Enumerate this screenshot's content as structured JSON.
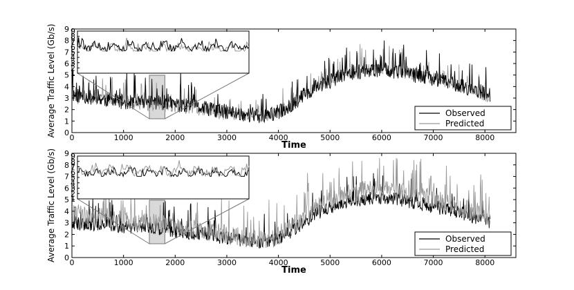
{
  "chart_data": [
    {
      "type": "line",
      "title": "",
      "xlabel": "Time",
      "ylabel": "Average Traffic Level (Gb/s)",
      "xlim": [
        0,
        8600
      ],
      "ylim": [
        0,
        9
      ],
      "x_ticks": [
        "0",
        "1000",
        "2000",
        "3000",
        "4000",
        "5000",
        "6000",
        "7000",
        "8000"
      ],
      "y_ticks": [
        "0",
        "1",
        "2",
        "3",
        "4",
        "5",
        "6",
        "7",
        "8",
        "9"
      ],
      "grid": false,
      "legend_position": "lower-right",
      "series": [
        {
          "name": "Observed",
          "color": "#000000",
          "x": [
            0,
            300,
            600,
            900,
            1200,
            1500,
            1800,
            2100,
            2400,
            2700,
            3000,
            3300,
            3600,
            3900,
            4200,
            4500,
            4800,
            5100,
            5400,
            5700,
            6000,
            6300,
            6600,
            6900,
            7200,
            7500,
            7800,
            8100
          ],
          "values": [
            3.3,
            3.1,
            2.9,
            2.7,
            2.6,
            2.7,
            2.6,
            2.4,
            2.2,
            2.0,
            1.8,
            1.6,
            1.4,
            1.6,
            2.2,
            3.3,
            4.1,
            4.7,
            5.2,
            5.4,
            5.5,
            5.3,
            5.0,
            4.8,
            4.5,
            4.1,
            3.7,
            3.3
          ]
        },
        {
          "name": "Predicted",
          "color": "#999999",
          "x": [
            0,
            300,
            600,
            900,
            1200,
            1500,
            1800,
            2100,
            2400,
            2700,
            3000,
            3300,
            3600,
            3900,
            4200,
            4500,
            4800,
            5100,
            5400,
            5700,
            6000,
            6300,
            6600,
            6900,
            7200,
            7500,
            7800,
            8100
          ],
          "values": [
            3.0,
            2.9,
            2.9,
            2.8,
            2.6,
            2.4,
            2.3,
            2.2,
            2.0,
            1.8,
            1.6,
            1.5,
            1.4,
            1.6,
            2.2,
            3.3,
            4.1,
            4.8,
            5.3,
            5.5,
            5.6,
            5.4,
            5.1,
            4.8,
            4.5,
            4.1,
            3.6,
            3.0
          ]
        }
      ],
      "inset": {
        "x_range": [
          1500,
          1800
        ],
        "ylim": [
          1,
          9
        ],
        "y_ticks": [
          "1",
          "2",
          "3",
          "4",
          "5",
          "6",
          "7",
          "8",
          "9"
        ]
      }
    },
    {
      "type": "line",
      "title": "",
      "xlabel": "Time",
      "ylabel": "Average Traffic Level (Gb/s)",
      "xlim": [
        0,
        8600
      ],
      "ylim": [
        0,
        9
      ],
      "x_ticks": [
        "0",
        "1000",
        "2000",
        "3000",
        "4000",
        "5000",
        "6000",
        "7000",
        "8000"
      ],
      "y_ticks": [
        "0",
        "1",
        "2",
        "3",
        "4",
        "5",
        "6",
        "7",
        "8",
        "9"
      ],
      "grid": false,
      "legend_position": "lower-right",
      "series": [
        {
          "name": "Observed",
          "color": "#000000",
          "x": [
            0,
            300,
            600,
            900,
            1200,
            1500,
            1800,
            2100,
            2400,
            2700,
            3000,
            3300,
            3600,
            3900,
            4200,
            4500,
            4800,
            5100,
            5400,
            5700,
            6000,
            6300,
            6600,
            6900,
            7200,
            7500,
            7800,
            8100
          ],
          "values": [
            3.0,
            2.9,
            2.8,
            2.7,
            2.6,
            2.6,
            2.4,
            2.2,
            2.1,
            1.9,
            1.7,
            1.5,
            1.3,
            1.5,
            2.1,
            3.1,
            3.9,
            4.5,
            4.9,
            5.1,
            5.2,
            5.0,
            4.8,
            4.5,
            4.2,
            3.9,
            3.5,
            3.1
          ]
        },
        {
          "name": "Predicted",
          "color": "#999999",
          "x": [
            0,
            300,
            600,
            900,
            1200,
            1500,
            1800,
            2100,
            2400,
            2700,
            3000,
            3300,
            3600,
            3900,
            4200,
            4500,
            4800,
            5100,
            5400,
            5700,
            6000,
            6300,
            6600,
            6900,
            7200,
            7500,
            7800,
            8100
          ],
          "values": [
            3.7,
            3.6,
            3.5,
            3.3,
            3.1,
            3.0,
            2.8,
            2.6,
            2.4,
            2.2,
            2.0,
            1.8,
            1.5,
            1.7,
            2.4,
            3.6,
            4.6,
            5.2,
            5.6,
            5.8,
            5.9,
            5.8,
            5.5,
            5.2,
            4.8,
            4.4,
            4.0,
            3.6
          ]
        }
      ],
      "inset": {
        "x_range": [
          1500,
          1800
        ],
        "ylim": [
          1,
          9
        ],
        "y_ticks": [
          "1",
          "2",
          "3",
          "4",
          "5",
          "6",
          "7",
          "8",
          "9"
        ]
      }
    }
  ]
}
